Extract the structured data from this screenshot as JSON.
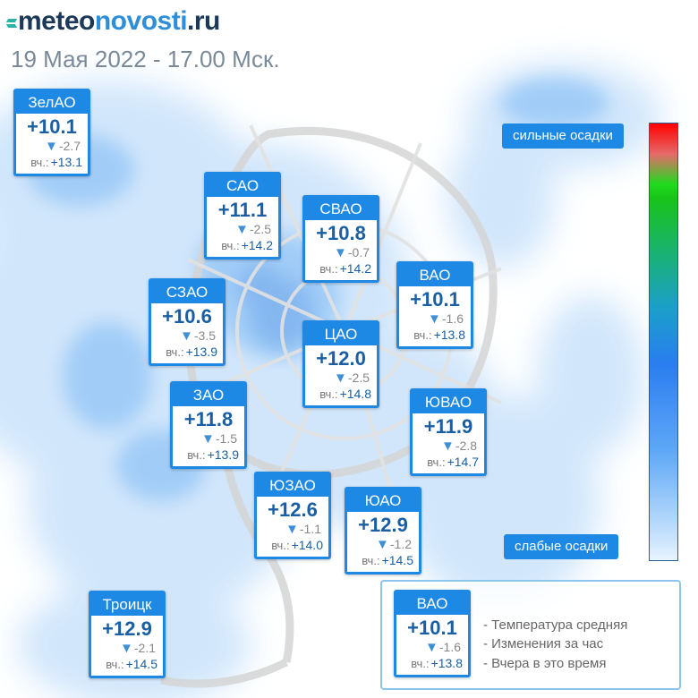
{
  "logo": {
    "part1": "meteo",
    "part2": "novosti",
    "part3": ".ru"
  },
  "date_text": "19 Мая 2022 - 17.00 Мск.",
  "yesterday_label": "вч.:",
  "districts": [
    {
      "name": "ЗелАО",
      "temp": "+10.1",
      "change": "-2.7",
      "yesterday": "+13.1"
    },
    {
      "name": "САО",
      "temp": "+11.1",
      "change": "-2.5",
      "yesterday": "+14.2"
    },
    {
      "name": "СВАО",
      "temp": "+10.8",
      "change": "-0.7",
      "yesterday": "+14.2"
    },
    {
      "name": "ВАО",
      "temp": "+10.1",
      "change": "-1.6",
      "yesterday": "+13.8"
    },
    {
      "name": "СЗАО",
      "temp": "+10.6",
      "change": "-3.5",
      "yesterday": "+13.9"
    },
    {
      "name": "ЦАО",
      "temp": "+12.0",
      "change": "-2.5",
      "yesterday": "+14.8"
    },
    {
      "name": "ЗАО",
      "temp": "+11.8",
      "change": "-1.5",
      "yesterday": "+13.9"
    },
    {
      "name": "ЮВАО",
      "temp": "+11.9",
      "change": "-2.8",
      "yesterday": "+14.7"
    },
    {
      "name": "ЮЗАО",
      "temp": "+12.6",
      "change": "-1.1",
      "yesterday": "+14.0"
    },
    {
      "name": "ЮАО",
      "temp": "+12.9",
      "change": "-1.2",
      "yesterday": "+14.5"
    },
    {
      "name": "Троицк",
      "temp": "+12.9",
      "change": "-2.1",
      "yesterday": "+14.5"
    }
  ],
  "scale": {
    "top_label": "сильные осадки",
    "bottom_label": "слабые осадки"
  },
  "legend": {
    "sample": {
      "name": "ВАО",
      "temp": "+10.1",
      "change": "-1.6",
      "yesterday": "+13.8"
    },
    "items": [
      "- Температура средняя",
      "- Изменения за час",
      "- Вчера в это время"
    ]
  },
  "colors": {
    "card_blue": "#1e88e5",
    "temp_text": "#1a5fa3",
    "precip_light": "#cfe5fb",
    "precip_mid": "#7fb8f5"
  }
}
